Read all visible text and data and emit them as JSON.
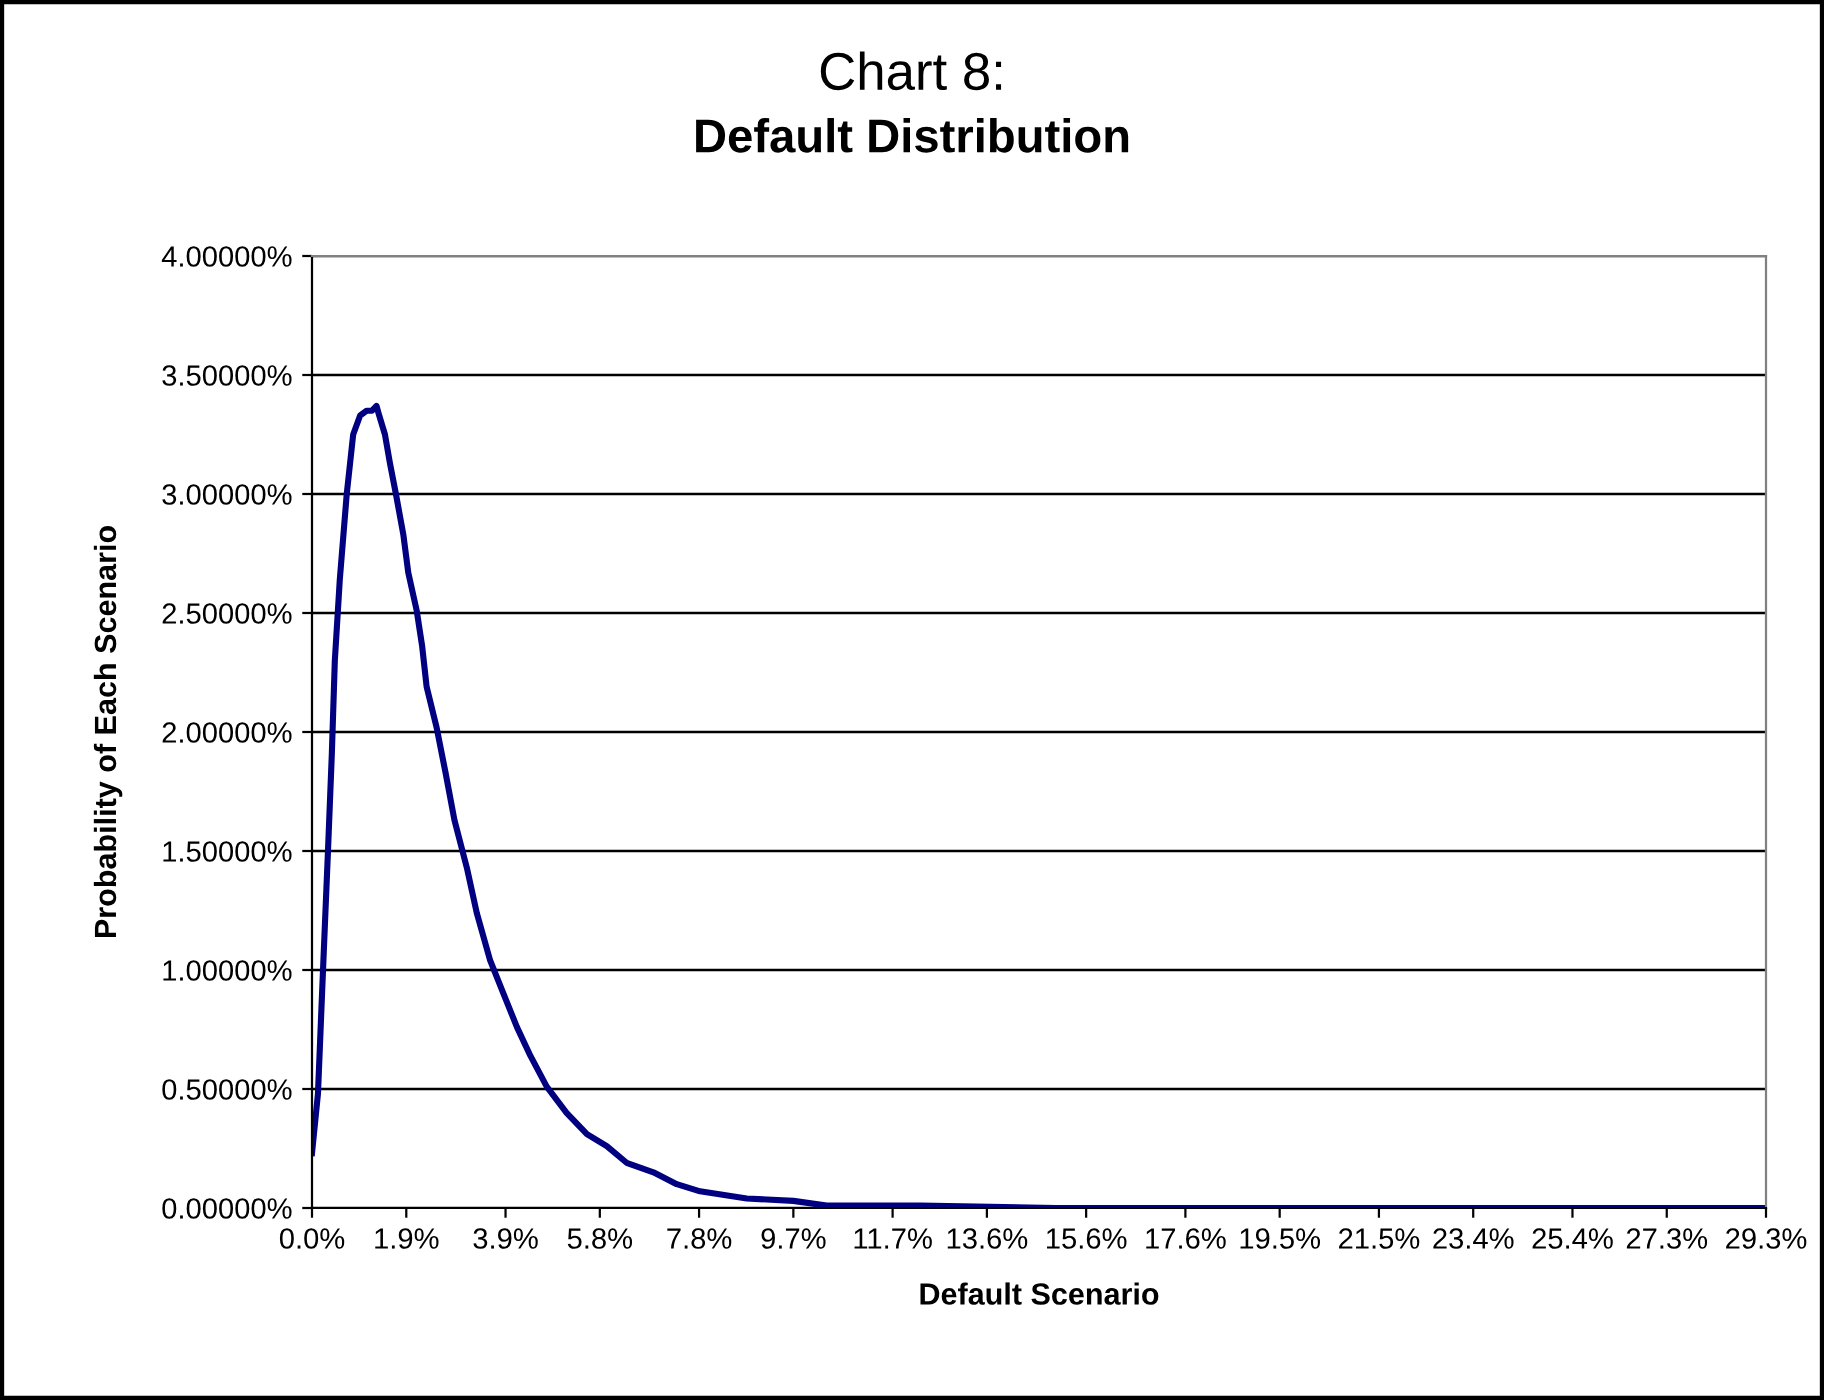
{
  "chart_data": {
    "type": "line",
    "title": "Chart 8:",
    "subtitle": "Default Distribution",
    "xlabel": "Default Scenario",
    "ylabel": "Probability of Each Scenario",
    "x": [
      0,
      0.12,
      0.23,
      0.32,
      0.4,
      0.46,
      0.56,
      0.7,
      0.83,
      0.97,
      1.1,
      1.21,
      1.3,
      1.34,
      1.47,
      1.57,
      1.7,
      1.84,
      1.94,
      2.11,
      2.22,
      2.31,
      2.51,
      2.69,
      2.87,
      3.12,
      3.32,
      3.59,
      3.86,
      4.13,
      4.4,
      4.73,
      5.13,
      5.54,
      5.94,
      6.34,
      6.88,
      7.35,
      7.82,
      8.76,
      9.7,
      10.37,
      12.26,
      15.0,
      20.0,
      25.0,
      29.3
    ],
    "series": [
      {
        "color": "#000080",
        "values": [
          0.23,
          0.48,
          1.04,
          1.49,
          1.91,
          2.3,
          2.64,
          3.0,
          3.25,
          3.33,
          3.35,
          3.35,
          3.37,
          3.34,
          3.25,
          3.13,
          2.99,
          2.83,
          2.67,
          2.51,
          2.36,
          2.19,
          2.02,
          1.83,
          1.63,
          1.43,
          1.24,
          1.04,
          0.9,
          0.76,
          0.64,
          0.51,
          0.4,
          0.31,
          0.26,
          0.19,
          0.15,
          0.1,
          0.07,
          0.04,
          0.03,
          0.01,
          0.01,
          0,
          0,
          0,
          0
        ]
      }
    ],
    "xlim": [
      0,
      29.3
    ],
    "xticks": [
      {
        "value": 0,
        "label": "0.0%"
      },
      {
        "value": 1.9,
        "label": "1.9%"
      },
      {
        "value": 3.9,
        "label": "3.9%"
      },
      {
        "value": 5.8,
        "label": "5.8%"
      },
      {
        "value": 7.8,
        "label": "7.8%"
      },
      {
        "value": 9.7,
        "label": "9.7%"
      },
      {
        "value": 11.7,
        "label": "11.7%"
      },
      {
        "value": 13.6,
        "label": "13.6%"
      },
      {
        "value": 15.6,
        "label": "15.6%"
      },
      {
        "value": 17.6,
        "label": "17.6%"
      },
      {
        "value": 19.5,
        "label": "19.5%"
      },
      {
        "value": 21.5,
        "label": "21.5%"
      },
      {
        "value": 23.4,
        "label": "23.4%"
      },
      {
        "value": 25.4,
        "label": "25.4%"
      },
      {
        "value": 27.3,
        "label": "27.3%"
      },
      {
        "value": 29.3,
        "label": "29.3%"
      }
    ],
    "ylim": [
      0,
      4
    ],
    "yticks": [
      {
        "value": 0,
        "label": "0.00000%"
      },
      {
        "value": 0.5,
        "label": "0.50000%"
      },
      {
        "value": 1,
        "label": "1.00000%"
      },
      {
        "value": 1.5,
        "label": "1.50000%"
      },
      {
        "value": 2,
        "label": "2.00000%"
      },
      {
        "value": 2.5,
        "label": "2.50000%"
      },
      {
        "value": 3,
        "label": "3.00000%"
      },
      {
        "value": 3.5,
        "label": "3.50000%"
      },
      {
        "value": 4,
        "label": "4.00000%"
      }
    ],
    "grid": "y",
    "marker": "none",
    "line_style": "solid",
    "legend": false
  }
}
